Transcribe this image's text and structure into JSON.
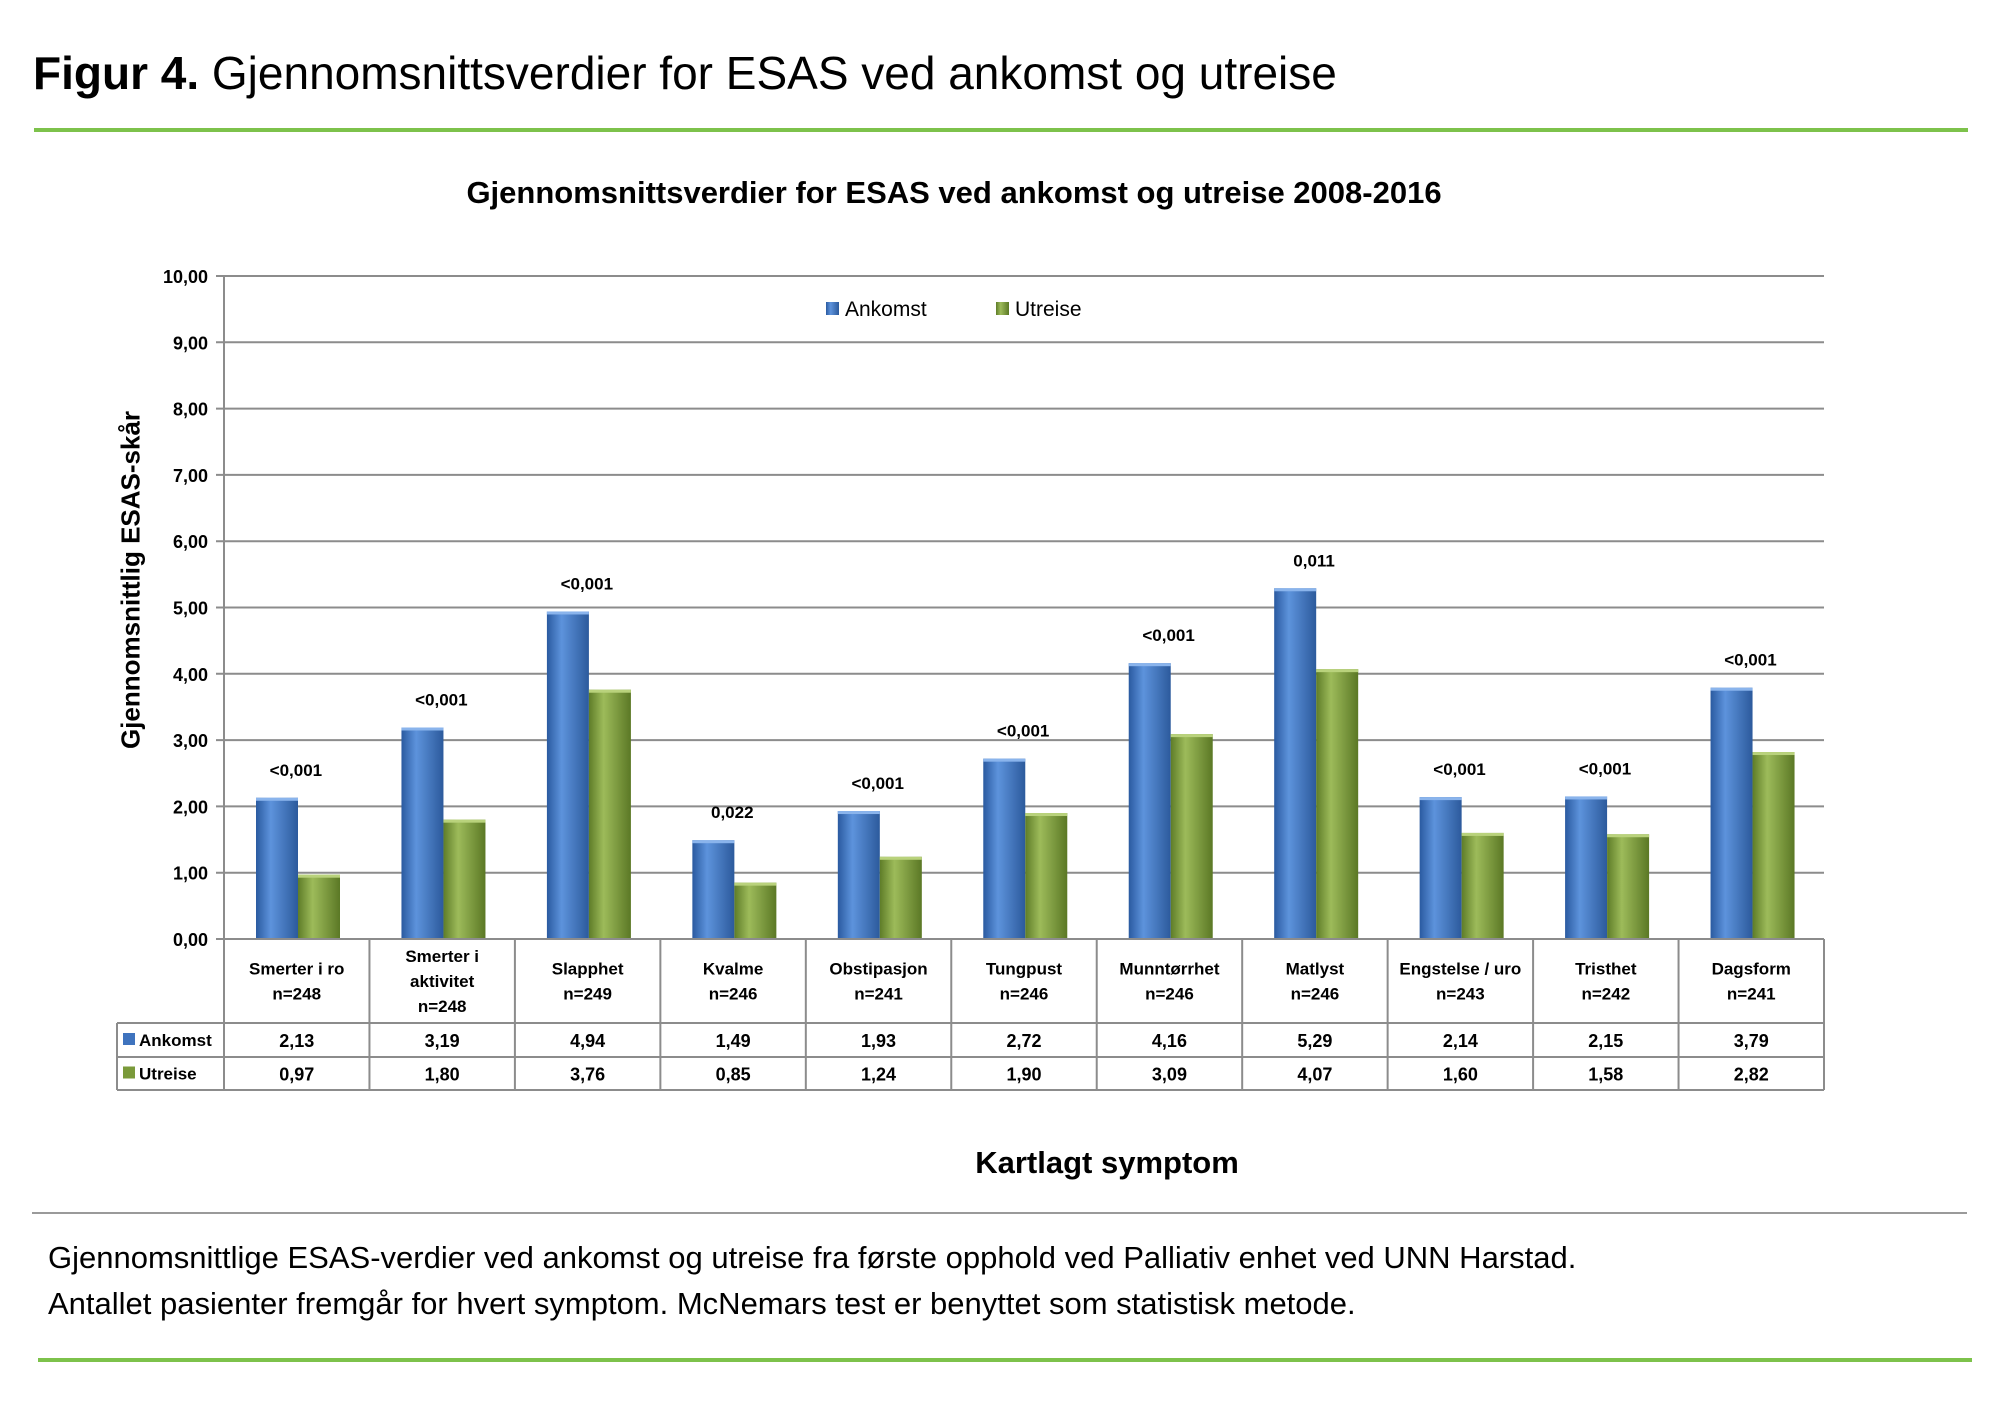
{
  "figure": {
    "label": "Figur 4.",
    "title": "Gjennomsnittsverdier for ESAS ved ankomst og utreise",
    "caption_line1": "Gjennomsnittlige ESAS-verdier ved ankomst og utreise fra første opphold ved Palliativ enhet ved UNN Harstad.",
    "caption_line2": "Antallet pasienter fremgår for hvert symptom. McNemars test er benyttet som statistisk metode."
  },
  "colors": {
    "accent_rule": "#7dc24b",
    "ankomst": "#3f73be",
    "utreise": "#7a9a3a"
  },
  "chart_data": {
    "type": "bar",
    "title": "Gjennomsnittsverdier for ESAS ved ankomst og utreise 2008-2016",
    "xlabel": "Kartlagt symptom",
    "ylabel": "Gjennomsnittlig  ESAS-skår",
    "ylim": [
      0,
      10
    ],
    "yticks": [
      "0,00",
      "1,00",
      "2,00",
      "3,00",
      "4,00",
      "5,00",
      "6,00",
      "7,00",
      "8,00",
      "9,00",
      "10,00"
    ],
    "grid": true,
    "legend": "top-center",
    "categories": [
      [
        "Smerter i ro",
        "n=248"
      ],
      [
        "Smerter i",
        "aktivitet",
        "n=248"
      ],
      [
        "Slapphet",
        "n=249"
      ],
      [
        "Kvalme",
        "n=246"
      ],
      [
        "Obstipasjon",
        "n=241"
      ],
      [
        "Tungpust",
        "n=246"
      ],
      [
        "Munntørrhet",
        "n=246"
      ],
      [
        "Matlyst",
        "n=246"
      ],
      [
        "Engstelse / uro",
        "n=243"
      ],
      [
        "Tristhet",
        "n=242"
      ],
      [
        "Dagsform",
        "n=241"
      ]
    ],
    "series": [
      {
        "name": "Ankomst",
        "values": [
          2.13,
          3.19,
          4.94,
          1.49,
          1.93,
          2.72,
          4.16,
          5.29,
          2.14,
          2.15,
          3.79
        ],
        "labels": [
          "2,13",
          "3,19",
          "4,94",
          "1,49",
          "1,93",
          "2,72",
          "4,16",
          "5,29",
          "2,14",
          "2,15",
          "3,79"
        ]
      },
      {
        "name": "Utreise",
        "values": [
          0.97,
          1.8,
          3.76,
          0.85,
          1.24,
          1.9,
          3.09,
          4.07,
          1.6,
          1.58,
          2.82
        ],
        "labels": [
          "0,97",
          "1,80",
          "3,76",
          "0,85",
          "1,24",
          "1,90",
          "3,09",
          "4,07",
          "1,60",
          "1,58",
          "2,82"
        ]
      }
    ],
    "p_values": [
      "<0,001",
      "<0,001",
      "<0,001",
      "0,022",
      "<0,001",
      "<0,001",
      "<0,001",
      "0,011",
      "<0,001",
      "<0,001",
      "<0,001"
    ]
  }
}
